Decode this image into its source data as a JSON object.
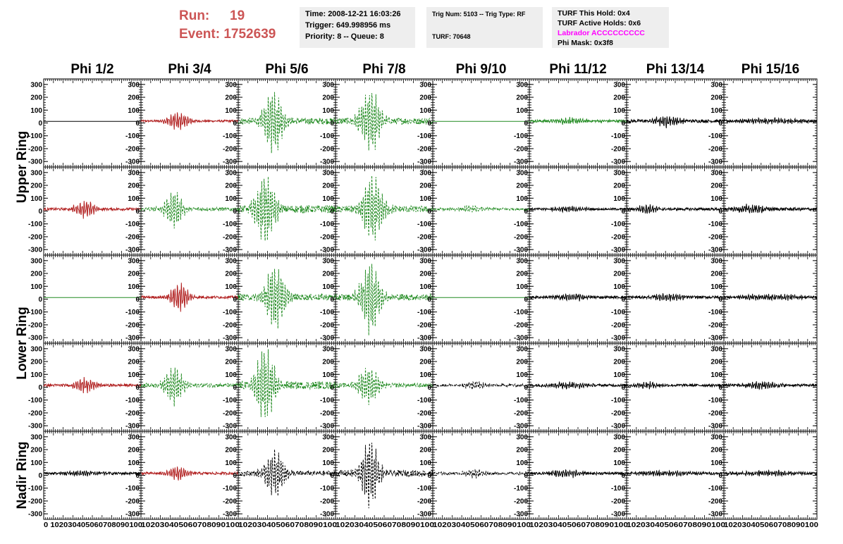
{
  "header": {
    "run_label": "Run:",
    "run_value": "19",
    "event_label": "Event:",
    "event_value": "1752639"
  },
  "trigger_box": {
    "time": "Time: 2008-12-21 16:03:26",
    "trigger": "Trigger: 649.998956 ms",
    "priority": "Priority: 8 -- Queue: 8"
  },
  "trig_box": {
    "trig": "Trig Num: 5103 -- Trig Type: RF",
    "turf": "TURF: 70648"
  },
  "turf_box": {
    "this_hold": "TURF This Hold: 0x4",
    "active_holds": "TURF Active Holds: 0x6",
    "labrador": "Labrador ACCCCCCCCC",
    "phi_mask": "Phi Mask: 0x3f8"
  },
  "colors": {
    "red": "#b22222",
    "green": "#228b22",
    "black": "#000000",
    "header_red": "#cc5555",
    "labrador_magenta": "#ff00ff",
    "box_bg": "#eeeeee"
  },
  "chart_data": {
    "type": "line",
    "description_columns": [
      "Phi 1/2",
      "Phi 3/4",
      "Phi 5/6",
      "Phi 7/8",
      "Phi 9/10",
      "Phi 11/12",
      "Phi 13/14",
      "Phi 15/16"
    ],
    "ring_labels": [
      {
        "label": "Upper Ring",
        "rows": [
          0,
          1
        ]
      },
      {
        "label": "Lower Ring",
        "rows": [
          2,
          3
        ]
      },
      {
        "label": "Nadir Ring",
        "rows": [
          4
        ]
      }
    ],
    "ylim": [
      -310,
      310
    ],
    "yticks": [
      "300",
      "200",
      "100",
      "0",
      "-100",
      "-200",
      "-300"
    ],
    "ytick_values": [
      300,
      200,
      100,
      0,
      -100,
      -200,
      -300
    ],
    "xlim": [
      0,
      100
    ],
    "xticks": [
      "0",
      "10",
      "20",
      "30",
      "40",
      "50",
      "60",
      "70",
      "80",
      "90",
      "100"
    ],
    "xtick_values": [
      0,
      10,
      20,
      30,
      40,
      50,
      60,
      70,
      80,
      90,
      100
    ],
    "xtick_text": [
      "0 102030405060708090100",
      "102030405060708090100",
      "102030405060708090100",
      "102030405060708090100",
      "102030405060708090100",
      "102030405060708090100",
      "102030405060708090100",
      "102030405060708090100"
    ],
    "panels": [
      [
        {
          "color": "black",
          "style": "solid",
          "amp": 0,
          "center": 50,
          "width": 20,
          "noise": 0
        },
        {
          "color": "red",
          "style": "solid",
          "amp": 70,
          "center": 38,
          "width": 12,
          "noise": 8
        },
        {
          "color": "green",
          "style": "dashed",
          "amp": 260,
          "center": 36,
          "width": 10,
          "noise": 25
        },
        {
          "color": "green",
          "style": "dashed",
          "amp": 250,
          "center": 36,
          "width": 11,
          "noise": 25
        },
        {
          "color": "green",
          "style": "solid",
          "amp": 0,
          "center": 50,
          "width": 20,
          "noise": 0
        },
        {
          "color": "green",
          "style": "solid",
          "amp": 25,
          "center": 42,
          "width": 14,
          "noise": 10
        },
        {
          "color": "black",
          "style": "solid",
          "amp": 45,
          "center": 42,
          "width": 14,
          "noise": 12
        },
        {
          "color": "black",
          "style": "solid",
          "amp": 20,
          "center": 50,
          "width": 40,
          "noise": 10
        }
      ],
      [
        {
          "color": "red",
          "style": "solid",
          "amp": 65,
          "center": 42,
          "width": 12,
          "noise": 10
        },
        {
          "color": "green",
          "style": "dashed",
          "amp": 140,
          "center": 34,
          "width": 10,
          "noise": 15
        },
        {
          "color": "green",
          "style": "dashed",
          "amp": 270,
          "center": 28,
          "width": 11,
          "noise": 30
        },
        {
          "color": "green",
          "style": "dashed",
          "amp": 250,
          "center": 38,
          "width": 12,
          "noise": 25
        },
        {
          "color": "green",
          "style": "dashed",
          "amp": 25,
          "center": 38,
          "width": 14,
          "noise": 10
        },
        {
          "color": "black",
          "style": "solid",
          "amp": 20,
          "center": 40,
          "width": 20,
          "noise": 8
        },
        {
          "color": "black",
          "style": "solid",
          "amp": 40,
          "center": 22,
          "width": 10,
          "noise": 10
        },
        {
          "color": "black",
          "style": "solid",
          "amp": 35,
          "center": 30,
          "width": 16,
          "noise": 12
        }
      ],
      [
        {
          "color": "green",
          "style": "solid",
          "amp": 0,
          "center": 50,
          "width": 20,
          "noise": 0
        },
        {
          "color": "red",
          "style": "solid",
          "amp": 110,
          "center": 40,
          "width": 10,
          "noise": 10
        },
        {
          "color": "green",
          "style": "dashed",
          "amp": 250,
          "center": 38,
          "width": 11,
          "noise": 25
        },
        {
          "color": "green",
          "style": "dashed",
          "amp": 270,
          "center": 36,
          "width": 11,
          "noise": 25
        },
        {
          "color": "green",
          "style": "solid",
          "amp": 0,
          "center": 50,
          "width": 20,
          "noise": 0
        },
        {
          "color": "black",
          "style": "solid",
          "amp": 25,
          "center": 44,
          "width": 20,
          "noise": 10
        },
        {
          "color": "black",
          "style": "solid",
          "amp": 25,
          "center": 44,
          "width": 20,
          "noise": 10
        },
        {
          "color": "black",
          "style": "solid",
          "amp": 20,
          "center": 50,
          "width": 40,
          "noise": 10
        }
      ],
      [
        {
          "color": "red",
          "style": "solid",
          "amp": 60,
          "center": 42,
          "width": 12,
          "noise": 10
        },
        {
          "color": "green",
          "style": "dashed",
          "amp": 150,
          "center": 34,
          "width": 10,
          "noise": 15
        },
        {
          "color": "green",
          "style": "dashed",
          "amp": 290,
          "center": 28,
          "width": 11,
          "noise": 30
        },
        {
          "color": "green",
          "style": "dashed",
          "amp": 140,
          "center": 34,
          "width": 12,
          "noise": 15
        },
        {
          "color": "black",
          "style": "dashed",
          "amp": 30,
          "center": 44,
          "width": 12,
          "noise": 10
        },
        {
          "color": "black",
          "style": "solid",
          "amp": 25,
          "center": 40,
          "width": 20,
          "noise": 10
        },
        {
          "color": "black",
          "style": "solid",
          "amp": 30,
          "center": 22,
          "width": 12,
          "noise": 10
        },
        {
          "color": "black",
          "style": "solid",
          "amp": 30,
          "center": 40,
          "width": 20,
          "noise": 10
        }
      ],
      [
        {
          "color": "black",
          "style": "solid",
          "amp": 20,
          "center": 40,
          "width": 20,
          "noise": 10
        },
        {
          "color": "red",
          "style": "solid",
          "amp": 60,
          "center": 38,
          "width": 10,
          "noise": 10
        },
        {
          "color": "black",
          "style": "dashed",
          "amp": 180,
          "center": 38,
          "width": 11,
          "noise": 20
        },
        {
          "color": "black",
          "style": "dashed",
          "amp": 270,
          "center": 35,
          "width": 10,
          "noise": 25
        },
        {
          "color": "black",
          "style": "dashed",
          "amp": 30,
          "center": 44,
          "width": 12,
          "noise": 10
        },
        {
          "color": "black",
          "style": "solid",
          "amp": 30,
          "center": 38,
          "width": 20,
          "noise": 10
        },
        {
          "color": "black",
          "style": "solid",
          "amp": 20,
          "center": 40,
          "width": 30,
          "noise": 10
        },
        {
          "color": "black",
          "style": "solid",
          "amp": 20,
          "center": 50,
          "width": 40,
          "noise": 10
        }
      ]
    ]
  }
}
